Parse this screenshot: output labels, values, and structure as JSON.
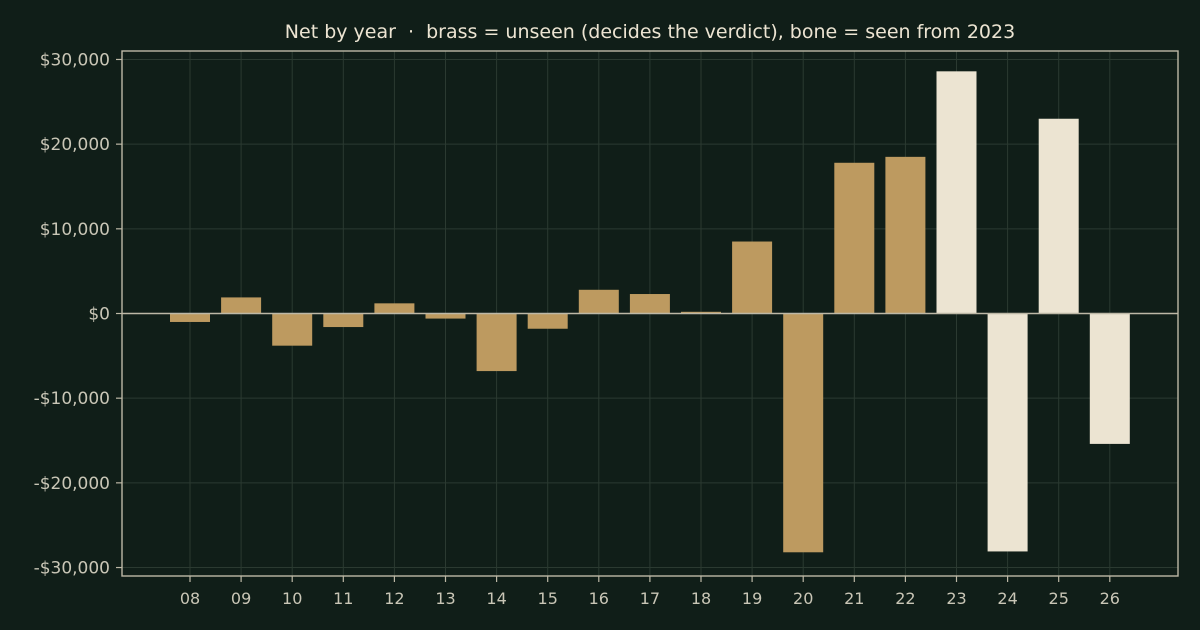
{
  "colors": {
    "background": "#101e18",
    "unseen": "#bd9a60",
    "seen": "#ece4d2",
    "axis": "#bdb8a6",
    "grid": "#2b3a31"
  },
  "chart_data": {
    "type": "bar",
    "title": "Net by year  ·  brass = unseen (decides the verdict), bone = seen from 2023",
    "xlabel": "",
    "ylabel": "",
    "ylim": [
      -31000,
      31000
    ],
    "yticks": [
      30000,
      20000,
      10000,
      0,
      -10000,
      -20000,
      -30000
    ],
    "ytick_labels": [
      "$30,000",
      "$20,000",
      "$10,000",
      "$0",
      "-$10,000",
      "-$20,000",
      "-$30,000"
    ],
    "grid": true,
    "categories": [
      "08",
      "09",
      "10",
      "11",
      "12",
      "13",
      "14",
      "15",
      "16",
      "17",
      "18",
      "19",
      "20",
      "21",
      "22",
      "23",
      "24",
      "25",
      "26"
    ],
    "values": [
      -1000,
      1900,
      -3800,
      -1600,
      1200,
      -600,
      -6800,
      -1800,
      2800,
      2300,
      200,
      8500,
      -28200,
      17800,
      18500,
      28600,
      -28100,
      23000,
      -15400
    ],
    "series_status": [
      "unseen",
      "unseen",
      "unseen",
      "unseen",
      "unseen",
      "unseen",
      "unseen",
      "unseen",
      "unseen",
      "unseen",
      "unseen",
      "unseen",
      "unseen",
      "unseen",
      "unseen",
      "seen",
      "seen",
      "seen",
      "seen"
    ]
  }
}
